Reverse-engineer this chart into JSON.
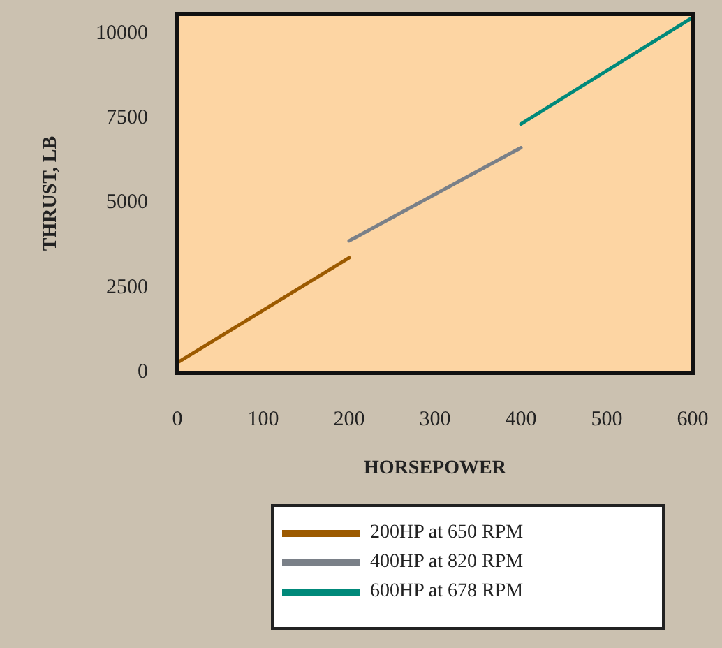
{
  "chart_data": {
    "type": "line",
    "xlabel": "HORSEPOWER",
    "ylabel": "THRUST, LB",
    "xlim": [
      0,
      600
    ],
    "xticks": [
      0,
      100,
      200,
      300,
      400,
      500,
      600
    ],
    "ylim": [
      0,
      10600
    ],
    "yticks": [
      0,
      2500,
      5000,
      7500,
      10000
    ],
    "grid": false,
    "legend": "bottom",
    "marker": "none",
    "series": [
      {
        "name": "200HP at 650 RPM",
        "color": "#9c5a00",
        "x": [
          0,
          200
        ],
        "values": [
          300,
          3400
        ]
      },
      {
        "name": "400HP at 820 RPM",
        "color": "#7a8088",
        "x": [
          200,
          400
        ],
        "values": [
          3900,
          6650
        ]
      },
      {
        "name": "600HP at 678 RPM",
        "color": "#00897a",
        "x": [
          400,
          600
        ],
        "values": [
          7350,
          10500
        ]
      }
    ]
  }
}
